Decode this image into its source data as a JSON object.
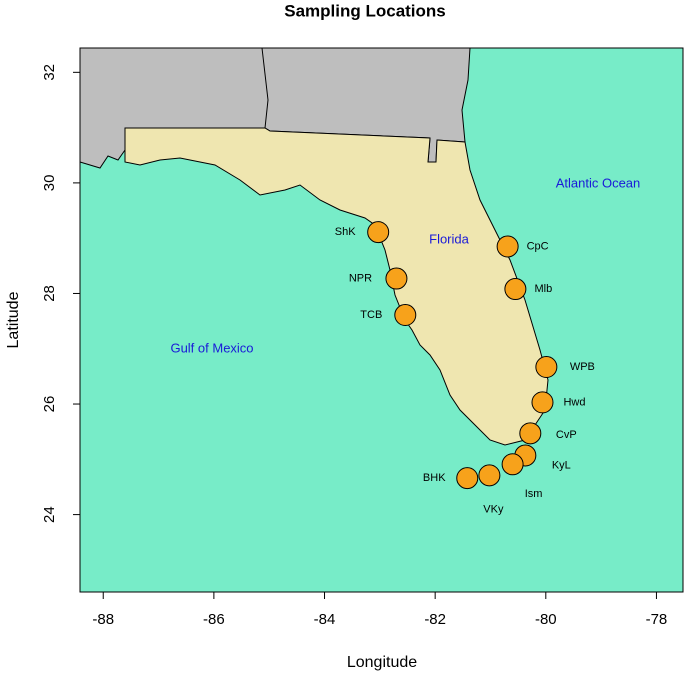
{
  "chart_data": {
    "type": "scatter",
    "title": "Sampling Locations",
    "xlabel": "Longitude",
    "ylabel": "Latitude",
    "labels": [
      "ShK",
      "NPR",
      "TCB",
      "CpC",
      "Mlb",
      "WPB",
      "Hwd",
      "CvP",
      "KyL",
      "Ism",
      "VKy",
      "BHK"
    ],
    "x": [
      -83.03,
      -82.7,
      -82.54,
      -80.69,
      -80.55,
      -79.99,
      -80.06,
      -80.28,
      -80.37,
      -80.6,
      -81.02,
      -81.42
    ],
    "y": [
      29.11,
      28.27,
      27.61,
      28.85,
      28.08,
      26.67,
      26.03,
      25.47,
      25.07,
      24.91,
      24.71,
      24.66
    ],
    "color": "#f7a21b",
    "annotations": [
      "Florida",
      "Atlantic Ocean",
      "Gulf of Mexico"
    ],
    "xlim": [
      -88.42,
      -77.52
    ],
    "ylim": [
      22.6,
      32.44
    ],
    "xticks": [
      -88,
      -86,
      -84,
      -82,
      -80,
      -78
    ],
    "yticks": [
      24,
      26,
      28,
      30,
      32
    ]
  }
}
